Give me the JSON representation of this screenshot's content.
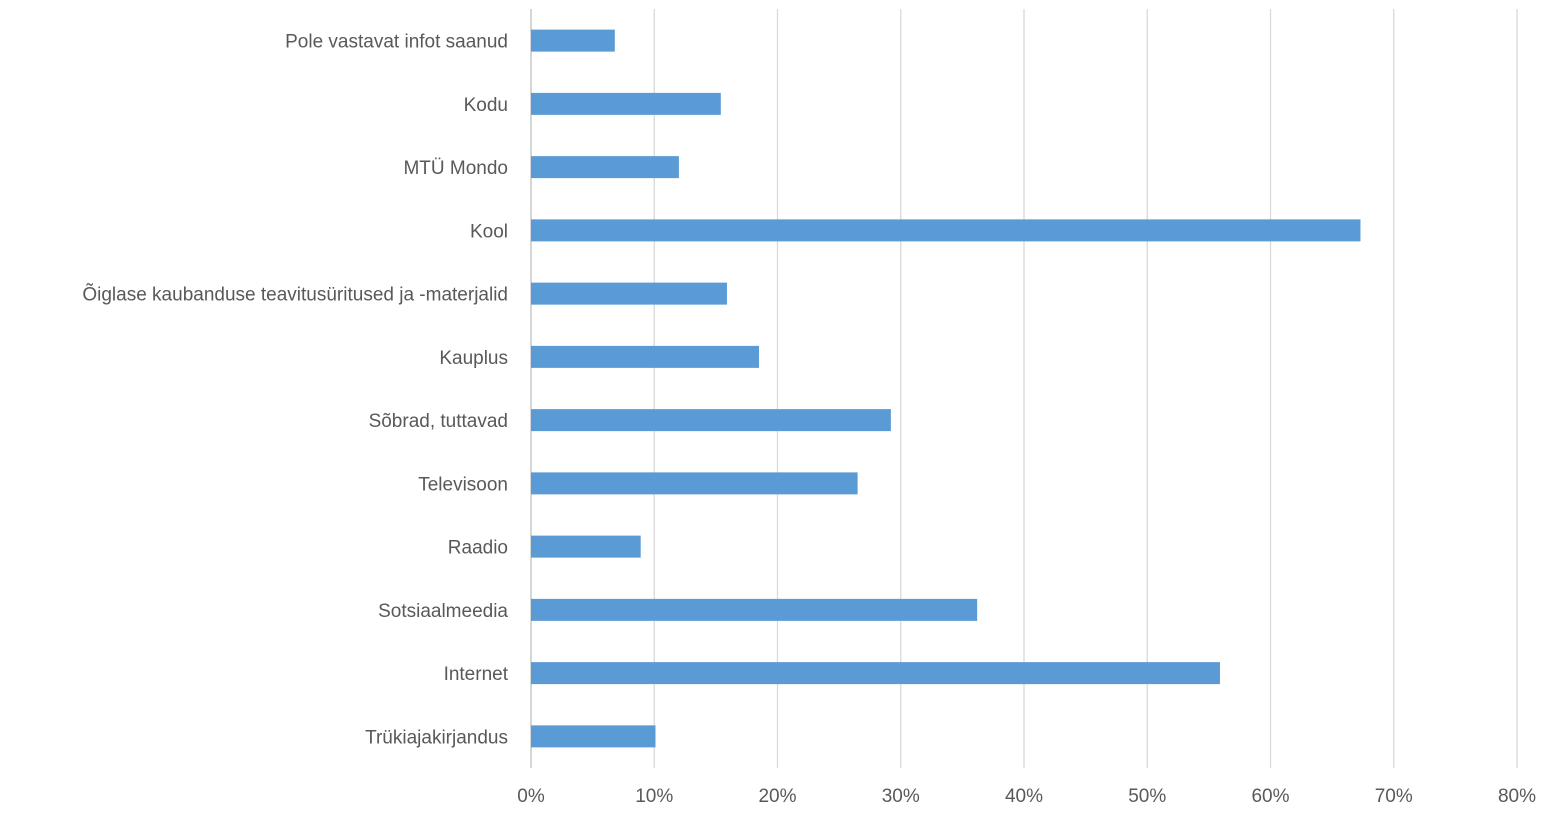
{
  "chart_data": {
    "type": "bar",
    "orientation": "horizontal",
    "title": "",
    "xlabel": "",
    "ylabel": "",
    "xlim": [
      0,
      0.8
    ],
    "x_ticks": [
      0,
      0.1,
      0.2,
      0.3,
      0.4,
      0.5,
      0.6,
      0.7,
      0.8
    ],
    "x_tick_labels": [
      "0%",
      "10%",
      "20%",
      "30%",
      "40%",
      "50%",
      "60%",
      "70%",
      "80%"
    ],
    "grid": true,
    "legend": "none",
    "bar_color": "#5b9bd5",
    "categories": [
      "Pole vastavat infot saanud",
      "Kodu",
      "MTÜ Mondo",
      "Kool",
      "Õiglase kaubanduse teavitusüritused ja -materjalid",
      "Kauplus",
      "Sõbrad, tuttavad",
      "Televisoon",
      "Raadio",
      "Sotsiaalmeedia",
      "Internet",
      "Trükiajakirjandus"
    ],
    "values": [
      0.068,
      0.154,
      0.12,
      0.673,
      0.159,
      0.185,
      0.292,
      0.265,
      0.089,
      0.362,
      0.559,
      0.101
    ]
  }
}
